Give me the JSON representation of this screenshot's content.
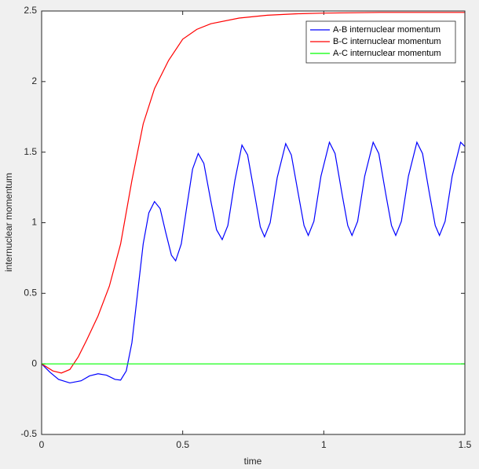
{
  "chart_data": {
    "type": "line",
    "xlabel": "time",
    "ylabel": "internuclear momentum",
    "xlim": [
      0,
      1.5
    ],
    "xticks": [
      0,
      0.5,
      1,
      1.5
    ],
    "ylim": [
      -0.5,
      2.5
    ],
    "yticks": [
      -0.5,
      0,
      0.5,
      1,
      1.5,
      2,
      2.5
    ],
    "legend": "upper right",
    "series": [
      {
        "name": "A-B internuclear momentum",
        "color": "#0000ff",
        "x": [
          0,
          0.03,
          0.06,
          0.1,
          0.14,
          0.17,
          0.2,
          0.23,
          0.26,
          0.28,
          0.3,
          0.32,
          0.34,
          0.36,
          0.38,
          0.4,
          0.42,
          0.44,
          0.46,
          0.475,
          0.495,
          0.515,
          0.535,
          0.555,
          0.575,
          0.6,
          0.62,
          0.64,
          0.66,
          0.685,
          0.71,
          0.73,
          0.755,
          0.775,
          0.79,
          0.81,
          0.835,
          0.865,
          0.885,
          0.91,
          0.93,
          0.945,
          0.965,
          0.99,
          1.02,
          1.04,
          1.065,
          1.085,
          1.1,
          1.12,
          1.145,
          1.175,
          1.195,
          1.22,
          1.24,
          1.255,
          1.275,
          1.3,
          1.33,
          1.35,
          1.375,
          1.395,
          1.41,
          1.43,
          1.455,
          1.485,
          1.5
        ],
        "values": [
          0,
          -0.06,
          -0.11,
          -0.135,
          -0.12,
          -0.085,
          -0.07,
          -0.08,
          -0.11,
          -0.115,
          -0.05,
          0.15,
          0.5,
          0.85,
          1.07,
          1.15,
          1.1,
          0.93,
          0.77,
          0.73,
          0.85,
          1.12,
          1.38,
          1.49,
          1.42,
          1.15,
          0.95,
          0.88,
          0.98,
          1.3,
          1.55,
          1.48,
          1.2,
          0.97,
          0.9,
          1.0,
          1.32,
          1.56,
          1.48,
          1.2,
          0.98,
          0.91,
          1.01,
          1.33,
          1.57,
          1.49,
          1.2,
          0.98,
          0.91,
          1.01,
          1.33,
          1.57,
          1.49,
          1.2,
          0.98,
          0.91,
          1.01,
          1.33,
          1.57,
          1.49,
          1.2,
          0.98,
          0.91,
          1.01,
          1.33,
          1.57,
          1.54
        ]
      },
      {
        "name": "B-C internuclear momentum",
        "color": "#ff0000",
        "x": [
          0,
          0.04,
          0.07,
          0.1,
          0.13,
          0.16,
          0.2,
          0.24,
          0.28,
          0.32,
          0.36,
          0.4,
          0.45,
          0.5,
          0.55,
          0.6,
          0.7,
          0.8,
          0.9,
          1.0,
          1.2,
          1.5
        ],
        "values": [
          0,
          -0.05,
          -0.065,
          -0.04,
          0.05,
          0.17,
          0.34,
          0.55,
          0.85,
          1.3,
          1.7,
          1.95,
          2.15,
          2.3,
          2.37,
          2.41,
          2.45,
          2.47,
          2.48,
          2.485,
          2.49,
          2.49
        ]
      },
      {
        "name": "A-C internuclear momentum",
        "color": "#00ff00",
        "x": [
          0,
          1.5
        ],
        "values": [
          0,
          0
        ]
      }
    ]
  }
}
